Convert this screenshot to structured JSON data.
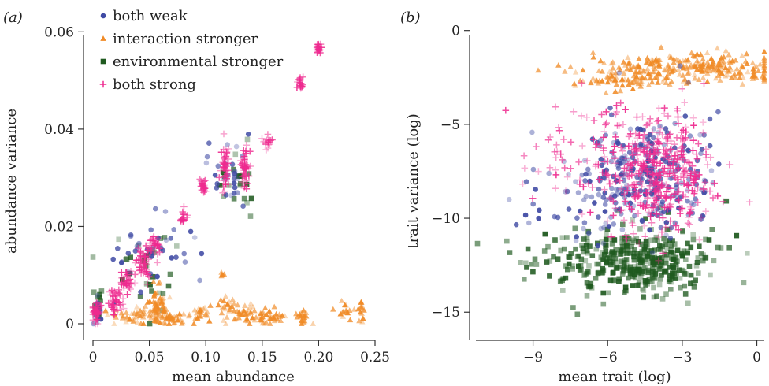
{
  "colors": {
    "both_weak": "#3f4aa4",
    "interaction_stronger": "#f08a25",
    "environmental_stronger": "#1f5a1f",
    "both_strong": "#ee2a8f"
  },
  "legend": [
    {
      "key": "both_weak",
      "label": "both weak",
      "shape": "circle"
    },
    {
      "key": "interaction_stronger",
      "label": "interaction stronger",
      "shape": "triangle"
    },
    {
      "key": "environmental_stronger",
      "label": "environmental stronger",
      "shape": "square"
    },
    {
      "key": "both_strong",
      "label": "both strong",
      "shape": "plus"
    }
  ],
  "chart_data": [
    {
      "type": "scatter",
      "panel_label": "(a)",
      "xlabel": "mean abundance",
      "ylabel": "abundance variance",
      "xlim": [
        0,
        0.25
      ],
      "ylim": [
        0,
        0.062
      ],
      "xticks": [
        0,
        0.05,
        0.1,
        0.15,
        0.2,
        0.25
      ],
      "xtick_labels": [
        "0",
        "0.05",
        "0.10",
        "0.15",
        "0.20",
        "0.25"
      ],
      "yticks": [
        0,
        0.02,
        0.04,
        0.06
      ],
      "ytick_labels": [
        "0",
        "0.02",
        "0.04",
        "0.06"
      ],
      "grid": false,
      "legend_position": "top-left",
      "clusters": [
        {
          "series": "both_strong",
          "x": 0.003,
          "y": 0.0025,
          "sx": 0.002,
          "sy": 0.0012,
          "n": 50
        },
        {
          "series": "both_strong",
          "x": 0.02,
          "y": 0.005,
          "sx": 0.004,
          "sy": 0.0015,
          "n": 40
        },
        {
          "series": "both_strong",
          "x": 0.03,
          "y": 0.0085,
          "sx": 0.003,
          "sy": 0.0012,
          "n": 30
        },
        {
          "series": "both_strong",
          "x": 0.045,
          "y": 0.013,
          "sx": 0.004,
          "sy": 0.0018,
          "n": 50
        },
        {
          "series": "both_strong",
          "x": 0.055,
          "y": 0.016,
          "sx": 0.003,
          "sy": 0.0012,
          "n": 30
        },
        {
          "series": "both_strong",
          "x": 0.08,
          "y": 0.022,
          "sx": 0.0015,
          "sy": 0.0008,
          "n": 20
        },
        {
          "series": "both_strong",
          "x": 0.097,
          "y": 0.028,
          "sx": 0.0015,
          "sy": 0.0008,
          "n": 25
        },
        {
          "series": "both_strong",
          "x": 0.117,
          "y": 0.032,
          "sx": 0.002,
          "sy": 0.0025,
          "n": 45
        },
        {
          "series": "both_strong",
          "x": 0.135,
          "y": 0.032,
          "sx": 0.002,
          "sy": 0.0025,
          "n": 45
        },
        {
          "series": "both_strong",
          "x": 0.155,
          "y": 0.0375,
          "sx": 0.0015,
          "sy": 0.0007,
          "n": 15
        },
        {
          "series": "both_strong",
          "x": 0.184,
          "y": 0.0495,
          "sx": 0.0012,
          "sy": 0.0007,
          "n": 20
        },
        {
          "series": "both_strong",
          "x": 0.2,
          "y": 0.0565,
          "sx": 0.001,
          "sy": 0.0005,
          "n": 20
        },
        {
          "series": "both_weak",
          "x": 0.05,
          "y": 0.014,
          "sx": 0.02,
          "sy": 0.004,
          "n": 40
        },
        {
          "series": "both_weak",
          "x": 0.12,
          "y": 0.031,
          "sx": 0.012,
          "sy": 0.004,
          "n": 30
        },
        {
          "series": "both_weak",
          "x": 0.004,
          "y": 0.003,
          "sx": 0.002,
          "sy": 0.0015,
          "n": 15
        },
        {
          "series": "environmental_stronger",
          "x": 0.04,
          "y": 0.011,
          "sx": 0.02,
          "sy": 0.004,
          "n": 30
        },
        {
          "series": "environmental_stronger",
          "x": 0.125,
          "y": 0.03,
          "sx": 0.01,
          "sy": 0.004,
          "n": 20
        },
        {
          "series": "environmental_stronger",
          "x": 0.004,
          "y": 0.004,
          "sx": 0.002,
          "sy": 0.002,
          "n": 15
        },
        {
          "series": "interaction_stronger",
          "x": 0.035,
          "y": 0.0015,
          "sx": 0.012,
          "sy": 0.0008,
          "n": 50
        },
        {
          "series": "interaction_stronger",
          "x": 0.058,
          "y": 0.004,
          "sx": 0.004,
          "sy": 0.0018,
          "n": 50
        },
        {
          "series": "interaction_stronger",
          "x": 0.07,
          "y": 0.001,
          "sx": 0.008,
          "sy": 0.0006,
          "n": 30
        },
        {
          "series": "interaction_stronger",
          "x": 0.095,
          "y": 0.0025,
          "sx": 0.006,
          "sy": 0.0012,
          "n": 25
        },
        {
          "series": "interaction_stronger",
          "x": 0.12,
          "y": 0.003,
          "sx": 0.006,
          "sy": 0.0015,
          "n": 25
        },
        {
          "series": "interaction_stronger",
          "x": 0.135,
          "y": 0.002,
          "sx": 0.004,
          "sy": 0.001,
          "n": 25
        },
        {
          "series": "interaction_stronger",
          "x": 0.155,
          "y": 0.0015,
          "sx": 0.008,
          "sy": 0.0008,
          "n": 35
        },
        {
          "series": "interaction_stronger",
          "x": 0.185,
          "y": 0.0015,
          "sx": 0.004,
          "sy": 0.0008,
          "n": 20
        },
        {
          "series": "interaction_stronger",
          "x": 0.222,
          "y": 0.0025,
          "sx": 0.003,
          "sy": 0.0008,
          "n": 15
        },
        {
          "series": "interaction_stronger",
          "x": 0.238,
          "y": 0.003,
          "sx": 0.002,
          "sy": 0.0008,
          "n": 12
        },
        {
          "series": "interaction_stronger",
          "x": 0.115,
          "y": 0.0105,
          "sx": 0.002,
          "sy": 0.0005,
          "n": 5
        }
      ]
    },
    {
      "type": "scatter",
      "panel_label": "(b)",
      "xlabel": "mean trait (log)",
      "ylabel": "trait variance (log)",
      "xlim": [
        -11.3,
        0.3
      ],
      "ylim": [
        -16.5,
        0.7
      ],
      "xticks": [
        -9,
        -6,
        -3,
        0
      ],
      "xtick_labels": [
        "−9",
        "−6",
        "−3",
        "0"
      ],
      "yticks": [
        0,
        -5,
        -10,
        -15
      ],
      "ytick_labels": [
        "0",
        "−5",
        "−10",
        "−15"
      ],
      "grid": false,
      "clusters": [
        {
          "series": "environmental_stronger",
          "x": -4.5,
          "y": -12.3,
          "sx": 1.4,
          "sy": 0.9,
          "n": 360
        },
        {
          "series": "environmental_stronger",
          "x": -7.8,
          "y": -12.0,
          "sx": 1.0,
          "sy": 0.9,
          "n": 50
        },
        {
          "series": "interaction_stronger",
          "x": -2.5,
          "y": -2.0,
          "sx": 2.0,
          "sy": 0.4,
          "n": 250
        },
        {
          "series": "interaction_stronger",
          "x": -5.5,
          "y": -2.6,
          "sx": 1.0,
          "sy": 0.35,
          "n": 70
        },
        {
          "series": "both_weak",
          "x": -4.2,
          "y": -7.5,
          "sx": 1.3,
          "sy": 1.5,
          "n": 260
        },
        {
          "series": "both_weak",
          "x": -6.8,
          "y": -8.5,
          "sx": 1.3,
          "sy": 1.5,
          "n": 60
        },
        {
          "series": "both_strong",
          "x": -4.0,
          "y": -7.5,
          "sx": 1.1,
          "sy": 1.5,
          "n": 420
        },
        {
          "series": "both_strong",
          "x": -7.3,
          "y": -7.0,
          "sx": 1.4,
          "sy": 1.5,
          "n": 60
        }
      ]
    }
  ]
}
